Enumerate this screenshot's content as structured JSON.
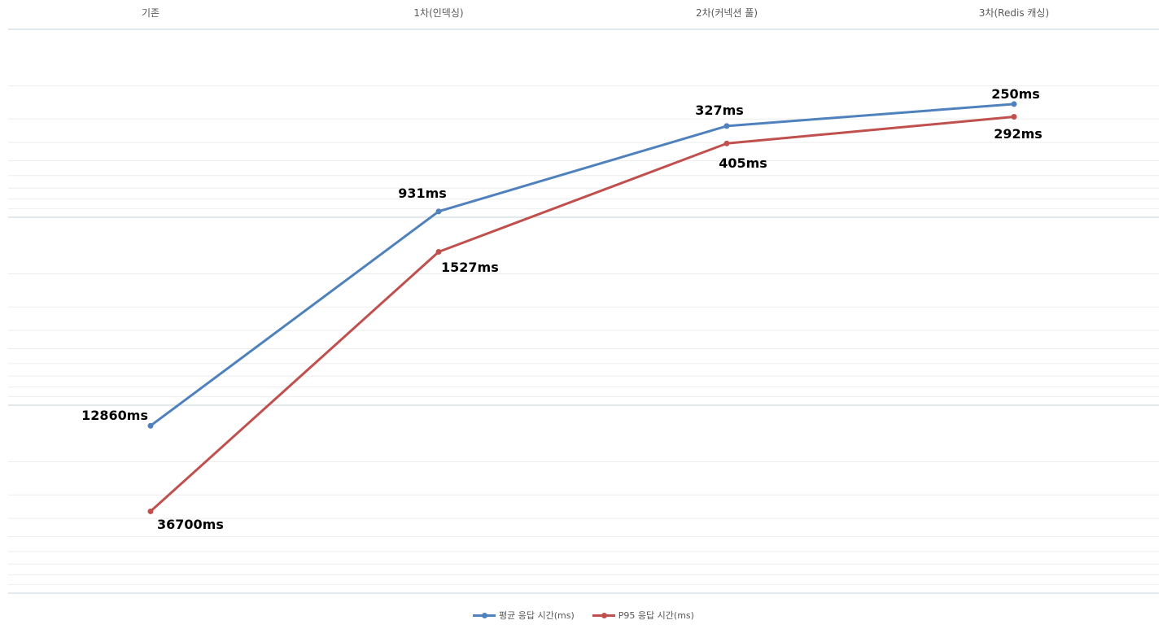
{
  "chart_data": {
    "type": "line",
    "categories": [
      "기존",
      "1차(인덱싱)",
      "2차(커넥션 풀)",
      "3차(Redis 캐싱)"
    ],
    "y_scale": "log",
    "y_reversed": true,
    "ylim": [
      100,
      100000
    ],
    "grid": true,
    "legend_position": "bottom",
    "series": [
      {
        "name": "평균 응답 시간(ms)",
        "color": "#4F81BD",
        "values": [
          12860,
          931,
          327,
          250
        ],
        "labels": [
          "12860ms",
          "931ms",
          "327ms",
          "250ms"
        ]
      },
      {
        "name": "P95 응답 시간(ms)",
        "color": "#C0504D",
        "values": [
          36700,
          1527,
          405,
          292
        ],
        "labels": [
          "36700ms",
          "1527ms",
          "405ms",
          "292ms"
        ]
      }
    ]
  }
}
